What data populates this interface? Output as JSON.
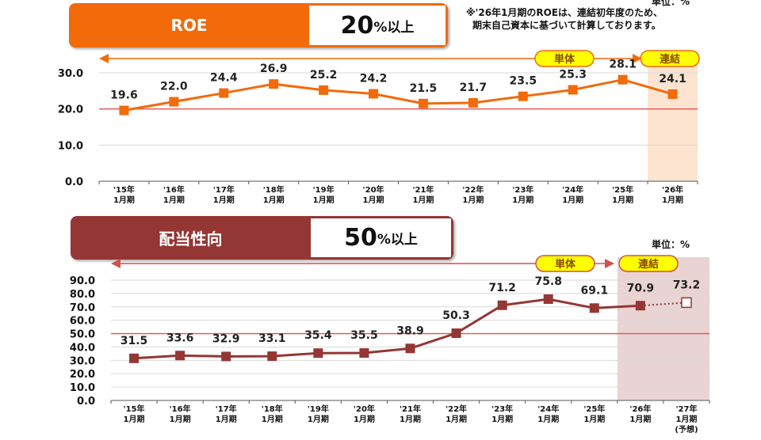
{
  "roe_header": {
    "title": "ROE",
    "target_num": "20",
    "target_suffix": "%以上"
  },
  "payout_header": {
    "title": "配当性向",
    "target_num": "50",
    "target_suffix": "%以上"
  },
  "note": [
    "※'26年1月期のROEは、連結初年度のため、",
    "期末自己資本に基づいて計算しております。"
  ],
  "colors": {
    "roe": "#f26a0a",
    "payout": "#943634",
    "target_line": "#e8504a"
  },
  "chart_data": [
    {
      "type": "line",
      "title": "ROE",
      "unit_label": "単位：%",
      "ylim": [
        0,
        30
      ],
      "yticks": [
        "0.0",
        "10.0",
        "20.0",
        "30.0"
      ],
      "target": 20,
      "categories": [
        [
          "'15年",
          "1月期"
        ],
        [
          "'16年",
          "1月期"
        ],
        [
          "'17年",
          "1月期"
        ],
        [
          "'18年",
          "1月期"
        ],
        [
          "'19年",
          "1月期"
        ],
        [
          "'20年",
          "1月期"
        ],
        [
          "'21年",
          "1月期"
        ],
        [
          "'22年",
          "1月期"
        ],
        [
          "'23年",
          "1月期"
        ],
        [
          "'24年",
          "1月期"
        ],
        [
          "'25年",
          "1月期"
        ],
        [
          "'26年",
          "1月期"
        ]
      ],
      "values": [
        19.6,
        22.0,
        24.4,
        26.9,
        25.2,
        24.2,
        21.5,
        21.7,
        23.5,
        25.3,
        28.1,
        24.1
      ],
      "labels": [
        "19.6",
        "22.0",
        "24.4",
        "26.9",
        "25.2",
        "24.2",
        "21.5",
        "21.7",
        "23.5",
        "25.3",
        "28.1",
        "24.1"
      ],
      "badges": [
        "単体",
        "連結"
      ]
    },
    {
      "type": "line",
      "title": "配当性向",
      "unit_label": "単位：%",
      "ylim": [
        0,
        90
      ],
      "yticks": [
        "0.0",
        "10.0",
        "20.0",
        "30.0",
        "40.0",
        "50.0",
        "60.0",
        "70.0",
        "80.0",
        "90.0"
      ],
      "target": 50,
      "categories": [
        [
          "'15年",
          "1月期"
        ],
        [
          "'16年",
          "1月期"
        ],
        [
          "'17年",
          "1月期"
        ],
        [
          "'18年",
          "1月期"
        ],
        [
          "'19年",
          "1月期"
        ],
        [
          "'20年",
          "1月期"
        ],
        [
          "'21年",
          "1月期"
        ],
        [
          "'22年",
          "1月期"
        ],
        [
          "'23年",
          "1月期"
        ],
        [
          "'24年",
          "1月期"
        ],
        [
          "'25年",
          "1月期"
        ],
        [
          "'26年",
          "1月期"
        ],
        [
          "'27年",
          "1月期",
          "(予想)"
        ]
      ],
      "values": [
        31.5,
        33.6,
        32.9,
        33.1,
        35.4,
        35.5,
        38.9,
        50.3,
        71.2,
        75.8,
        69.1,
        70.9,
        73.2
      ],
      "labels": [
        "31.5",
        "33.6",
        "32.9",
        "33.1",
        "35.4",
        "35.5",
        "38.9",
        "50.3",
        "71.2",
        "75.8",
        "69.1",
        "70.9",
        "73.2"
      ],
      "forecast_index": 12,
      "badges": [
        "単体",
        "連結"
      ]
    }
  ]
}
